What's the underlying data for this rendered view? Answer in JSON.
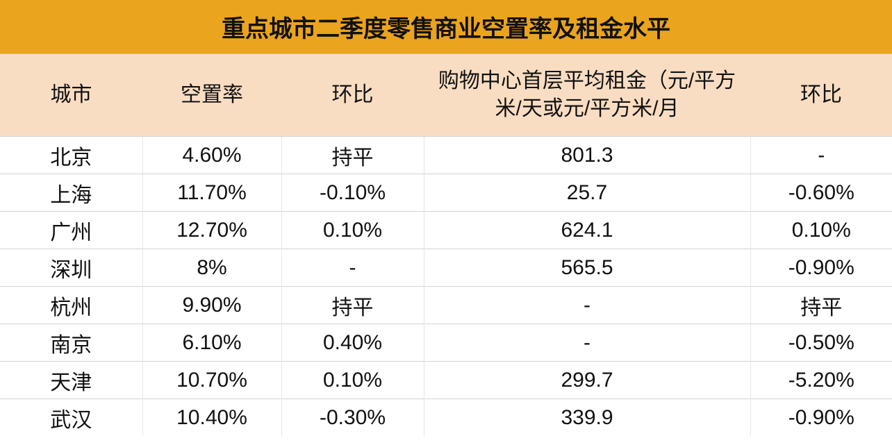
{
  "header": {
    "title": "重点城市二季度零售商业空置率及租金水平"
  },
  "table": {
    "columns": [
      "城市",
      "空置率",
      "环比",
      "购物中心首层平均租金（元/平方米/天或元/平方米/月",
      "环比"
    ],
    "rows": [
      [
        "北京",
        "4.60%",
        "持平",
        "801.3",
        "-"
      ],
      [
        "上海",
        "11.70%",
        "-0.10%",
        "25.7",
        "-0.60%"
      ],
      [
        "广州",
        "12.70%",
        "0.10%",
        "624.1",
        "0.10%"
      ],
      [
        "深圳",
        "8%",
        "-",
        "565.5",
        "-0.90%"
      ],
      [
        "杭州",
        "9.90%",
        "持平",
        "-",
        "持平"
      ],
      [
        "南京",
        "6.10%",
        "0.40%",
        "-",
        "-0.50%"
      ],
      [
        "天津",
        "10.70%",
        "0.10%",
        "299.7",
        "-5.20%"
      ],
      [
        "武汉",
        "10.40%",
        "-0.30%",
        "339.9",
        "-0.90%"
      ]
    ]
  }
}
